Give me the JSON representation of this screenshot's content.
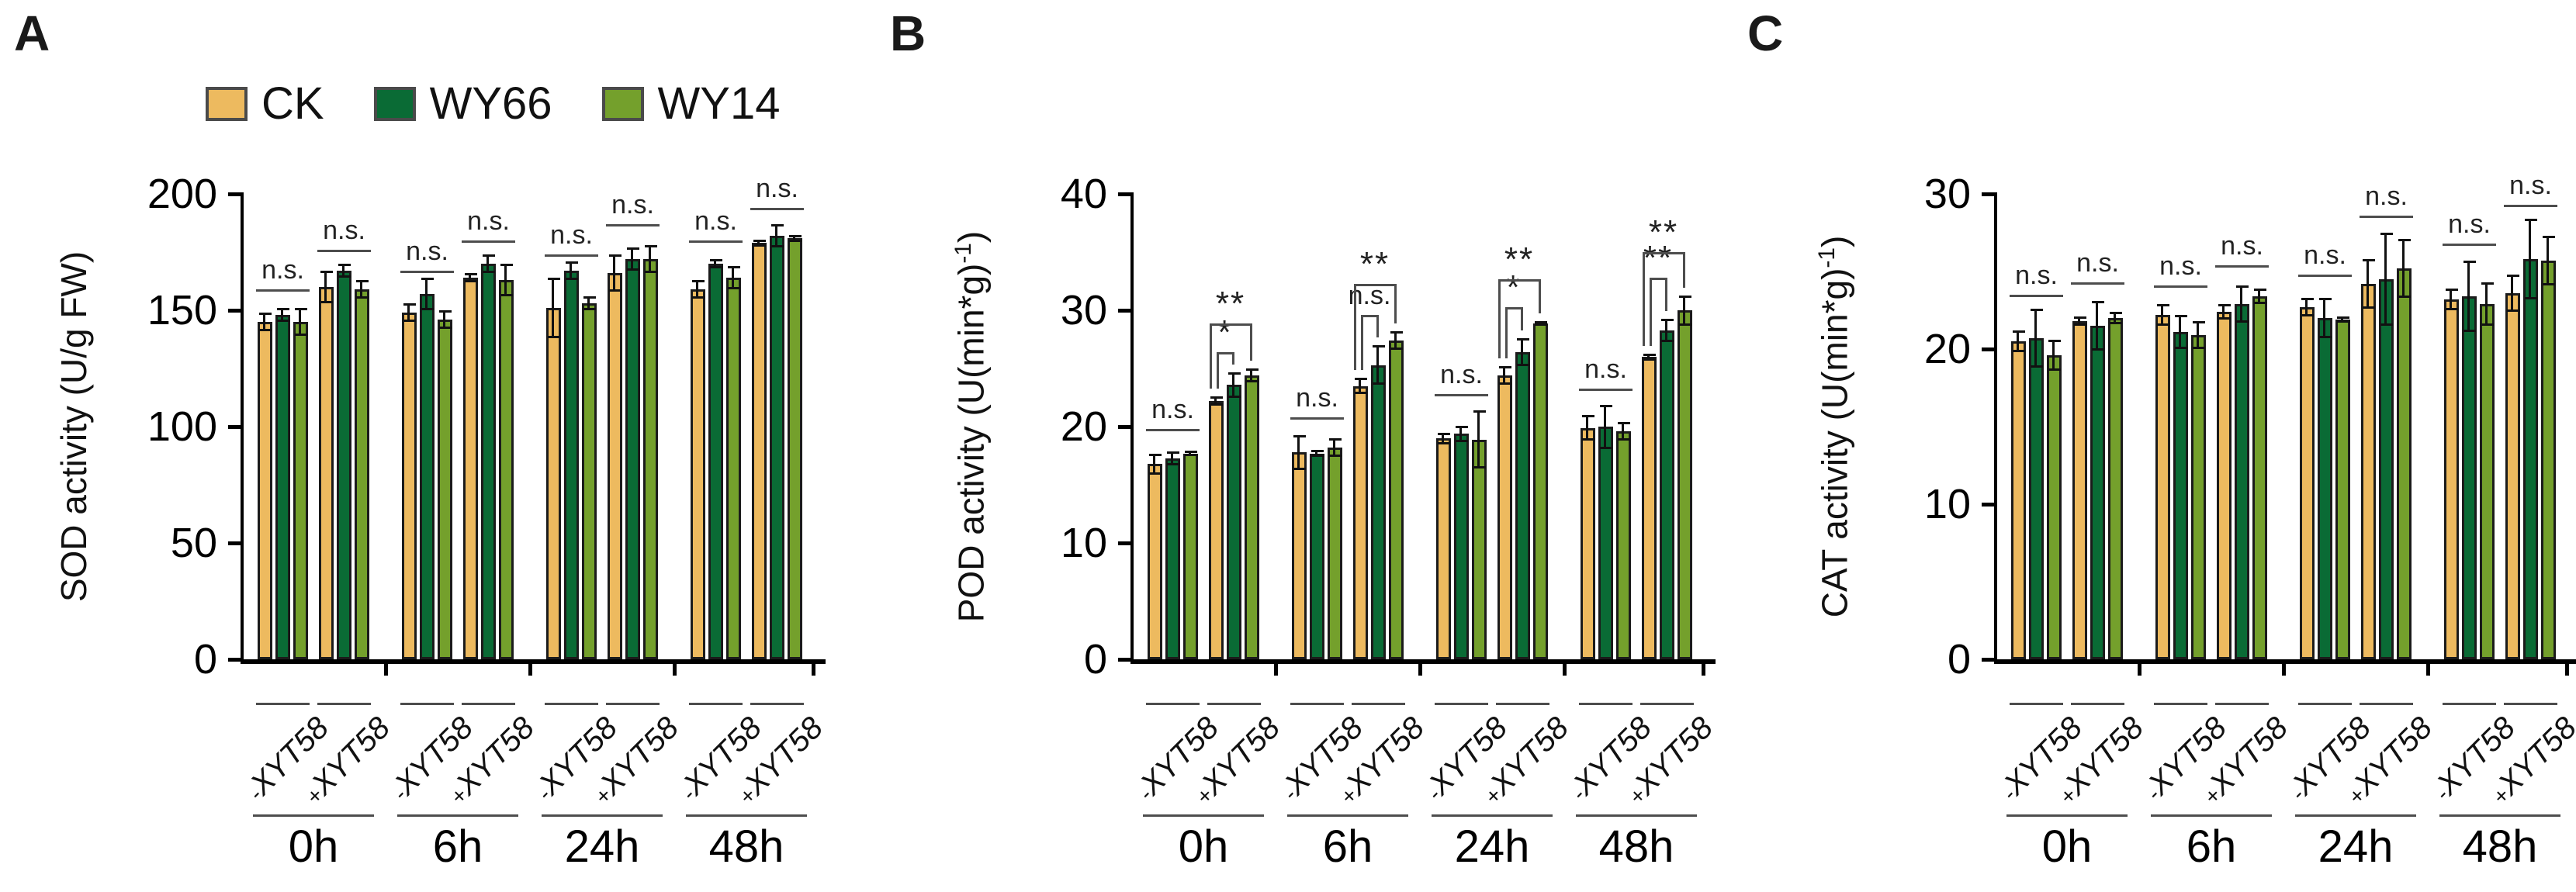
{
  "figure": {
    "panels": [
      "A",
      "B",
      "C"
    ],
    "legend": {
      "items": [
        {
          "label": "CK",
          "color": "#EDBA5F"
        },
        {
          "label": "WY66",
          "color": "#0A6B35"
        },
        {
          "label": "WY14",
          "color": "#74A02C"
        }
      ]
    },
    "colors": {
      "bar_outline": "#1b1b1b",
      "axis": "#000000",
      "sig_line": "#4d4d4d",
      "sig_text": "#222222",
      "error_bar": "#111111"
    }
  },
  "chart_data": [
    {
      "type": "bar",
      "panel": "A",
      "ylabel": "SOD activity (U/g FW)",
      "ylabel_main": "SOD activity (U/g FW)",
      "ylabel_sup": "",
      "ylabel_end": "",
      "ylim": [
        0,
        200
      ],
      "yticks": [
        0,
        50,
        100,
        150,
        200
      ],
      "categories": [
        "0h",
        "6h",
        "24h",
        "48h"
      ],
      "subgroups": [
        "-XYT58",
        "+XYT58"
      ],
      "series": [
        "CK",
        "WY66",
        "WY14"
      ],
      "legend_position": "top",
      "grid": false,
      "groups": [
        {
          "time": "0h",
          "sub": [
            {
              "label": "-XYT58",
              "values": [
                145,
                148,
                145
              ],
              "errors": [
                4,
                3,
                6
              ],
              "sig": [
                {
                  "type": "line",
                  "label": "n.s.",
                  "level": 159
                }
              ]
            },
            {
              "label": "+XYT58",
              "values": [
                160,
                167,
                159
              ],
              "errors": [
                7,
                3,
                4
              ],
              "sig": [
                {
                  "type": "line",
                  "label": "n.s.",
                  "level": 176
                }
              ]
            }
          ]
        },
        {
          "time": "6h",
          "sub": [
            {
              "label": "-XYT58",
              "values": [
                149,
                157,
                146
              ],
              "errors": [
                4,
                7,
                4
              ],
              "sig": [
                {
                  "type": "line",
                  "label": "n.s.",
                  "level": 167
                }
              ]
            },
            {
              "label": "+XYT58",
              "values": [
                164,
                170,
                163
              ],
              "errors": [
                2,
                4,
                7
              ],
              "sig": [
                {
                  "type": "line",
                  "label": "n.s.",
                  "level": 180
                }
              ]
            }
          ]
        },
        {
          "time": "24h",
          "sub": [
            {
              "label": "-XYT58",
              "values": [
                151,
                167,
                153
              ],
              "errors": [
                13,
                4,
                3
              ],
              "sig": [
                {
                  "type": "line",
                  "label": "n.s.",
                  "level": 174
                }
              ]
            },
            {
              "label": "+XYT58",
              "values": [
                166,
                172,
                172
              ],
              "errors": [
                8,
                5,
                6
              ],
              "sig": [
                {
                  "type": "line",
                  "label": "n.s.",
                  "level": 187
                }
              ]
            }
          ]
        },
        {
          "time": "48h",
          "sub": [
            {
              "label": "-XYT58",
              "values": [
                159,
                170,
                164
              ],
              "errors": [
                4,
                2,
                5
              ],
              "sig": [
                {
                  "type": "line",
                  "label": "n.s.",
                  "level": 180
                }
              ]
            },
            {
              "label": "+XYT58",
              "values": [
                179,
                182,
                181
              ],
              "errors": [
                1.5,
                5,
                1.5
              ],
              "sig": [
                {
                  "type": "line",
                  "label": "n.s.",
                  "level": 194
                }
              ]
            }
          ]
        }
      ]
    },
    {
      "type": "bar",
      "panel": "B",
      "ylabel": "POD activity (U(min*g)-1)",
      "ylabel_main": "POD activity (U(min*g)",
      "ylabel_sup": "-1",
      "ylabel_end": ")",
      "ylim": [
        0,
        40
      ],
      "yticks": [
        0,
        10,
        20,
        30,
        40
      ],
      "categories": [
        "0h",
        "6h",
        "24h",
        "48h"
      ],
      "subgroups": [
        "-XYT58",
        "+XYT58"
      ],
      "series": [
        "CK",
        "WY66",
        "WY14"
      ],
      "legend_position": "none",
      "grid": false,
      "groups": [
        {
          "time": "0h",
          "sub": [
            {
              "label": "-XYT58",
              "values": [
                16.8,
                17.3,
                17.7
              ],
              "errors": [
                0.9,
                0.6,
                0.25
              ],
              "sig": [
                {
                  "type": "line",
                  "label": "n.s.",
                  "level": 19.8
                }
              ]
            },
            {
              "label": "+XYT58",
              "values": [
                22.2,
                23.6,
                24.4
              ],
              "errors": [
                0.4,
                1.1,
                0.6
              ],
              "sig": [
                {
                  "type": "bracket",
                  "from": 0,
                  "to": 1,
                  "label": "*",
                  "level": 26.4
                },
                {
                  "type": "bracket",
                  "from": 0,
                  "to": 2,
                  "label": "**",
                  "level": 28.9
                }
              ]
            }
          ]
        },
        {
          "time": "6h",
          "sub": [
            {
              "label": "-XYT58",
              "values": [
                17.8,
                17.7,
                18.2
              ],
              "errors": [
                1.5,
                0.3,
                0.8
              ],
              "sig": [
                {
                  "type": "line",
                  "label": "n.s.",
                  "level": 20.8
                }
              ]
            },
            {
              "label": "+XYT58",
              "values": [
                23.5,
                25.3,
                27.4
              ],
              "errors": [
                0.7,
                1.7,
                0.8
              ],
              "sig": [
                {
                  "type": "bracket",
                  "from": 0,
                  "to": 1,
                  "label": "n.s.",
                  "level": 29.6
                },
                {
                  "type": "bracket",
                  "from": 0,
                  "to": 2,
                  "label": "**",
                  "level": 32.3
                }
              ]
            }
          ]
        },
        {
          "time": "24h",
          "sub": [
            {
              "label": "-XYT58",
              "values": [
                19.0,
                19.4,
                18.9
              ],
              "errors": [
                0.5,
                0.7,
                2.5
              ],
              "sig": [
                {
                  "type": "line",
                  "label": "n.s.",
                  "level": 22.8
                }
              ]
            },
            {
              "label": "+XYT58",
              "values": [
                24.4,
                26.4,
                28.9
              ],
              "errors": [
                0.8,
                1.2,
                0.15
              ],
              "sig": [
                {
                  "type": "bracket",
                  "from": 0,
                  "to": 1,
                  "label": "*",
                  "level": 30.3
                },
                {
                  "type": "bracket",
                  "from": 0,
                  "to": 2,
                  "label": "**",
                  "level": 32.7
                }
              ]
            }
          ]
        },
        {
          "time": "48h",
          "sub": [
            {
              "label": "-XYT58",
              "values": [
                19.9,
                20.0,
                19.6
              ],
              "errors": [
                1.1,
                1.9,
                0.8
              ],
              "sig": [
                {
                  "type": "line",
                  "label": "n.s.",
                  "level": 23.3
                }
              ]
            },
            {
              "label": "+XYT58",
              "values": [
                26.0,
                28.3,
                30.0
              ],
              "errors": [
                0.3,
                1.0,
                1.3
              ],
              "sig": [
                {
                  "type": "bracket",
                  "from": 0,
                  "to": 1,
                  "label": "**",
                  "level": 32.8
                },
                {
                  "type": "bracket",
                  "from": 0,
                  "to": 2,
                  "label": "**",
                  "level": 35.0
                }
              ]
            }
          ]
        }
      ]
    },
    {
      "type": "bar",
      "panel": "C",
      "ylabel": "CAT activity (U(min*g)-1)",
      "ylabel_main": "CAT activity (U(min*g)",
      "ylabel_sup": "-1",
      "ylabel_end": ")",
      "ylim": [
        0,
        30
      ],
      "yticks": [
        0,
        10,
        20,
        30
      ],
      "categories": [
        "0h",
        "6h",
        "24h",
        "48h"
      ],
      "subgroups": [
        "-XYT58",
        "+XYT58"
      ],
      "series": [
        "CK",
        "WY66",
        "WY14"
      ],
      "legend_position": "none",
      "grid": false,
      "groups": [
        {
          "time": "0h",
          "sub": [
            {
              "label": "-XYT58",
              "values": [
                20.5,
                20.7,
                19.6
              ],
              "errors": [
                0.7,
                1.9,
                1.0
              ],
              "sig": [
                {
                  "type": "line",
                  "label": "n.s.",
                  "level": 23.5
                }
              ]
            },
            {
              "label": "+XYT58",
              "values": [
                21.8,
                21.5,
                22.0
              ],
              "errors": [
                0.3,
                1.6,
                0.4
              ],
              "sig": [
                {
                  "type": "line",
                  "label": "n.s.",
                  "level": 24.3
                }
              ]
            }
          ]
        },
        {
          "time": "6h",
          "sub": [
            {
              "label": "-XYT58",
              "values": [
                22.2,
                21.1,
                20.9
              ],
              "errors": [
                0.7,
                1.1,
                0.9
              ],
              "sig": [
                {
                  "type": "line",
                  "label": "n.s.",
                  "level": 24.1
                }
              ]
            },
            {
              "label": "+XYT58",
              "values": [
                22.4,
                22.9,
                23.4
              ],
              "errors": [
                0.5,
                1.2,
                0.5
              ],
              "sig": [
                {
                  "type": "line",
                  "label": "n.s.",
                  "level": 25.4
                }
              ]
            }
          ]
        },
        {
          "time": "24h",
          "sub": [
            {
              "label": "-XYT58",
              "values": [
                22.7,
                22.0,
                21.9
              ],
              "errors": [
                0.6,
                1.3,
                0.2
              ],
              "sig": [
                {
                  "type": "line",
                  "label": "n.s.",
                  "level": 24.8
                }
              ]
            },
            {
              "label": "+XYT58",
              "values": [
                24.2,
                24.5,
                25.2
              ],
              "errors": [
                1.6,
                3.0,
                1.9
              ],
              "sig": [
                {
                  "type": "line",
                  "label": "n.s.",
                  "level": 28.6
                }
              ]
            }
          ]
        },
        {
          "time": "48h",
          "sub": [
            {
              "label": "-XYT58",
              "values": [
                23.2,
                23.4,
                22.9
              ],
              "errors": [
                0.7,
                2.3,
                1.4
              ],
              "sig": [
                {
                  "type": "line",
                  "label": "n.s.",
                  "level": 26.8
                }
              ]
            },
            {
              "label": "+XYT58",
              "values": [
                23.6,
                25.8,
                25.7
              ],
              "errors": [
                1.2,
                2.6,
                1.6
              ],
              "sig": [
                {
                  "type": "line",
                  "label": "n.s.",
                  "level": 29.3
                }
              ]
            }
          ]
        }
      ]
    }
  ]
}
